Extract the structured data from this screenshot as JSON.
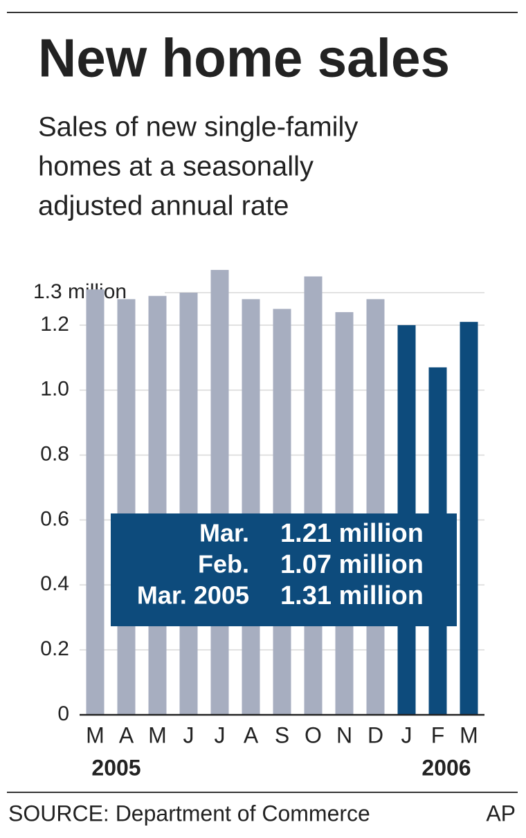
{
  "chart_data": {
    "type": "bar",
    "title": "New home sales",
    "subtitle": [
      "Sales of new single-family",
      "homes at a seasonally",
      "adjusted annual rate"
    ],
    "categories": [
      "M",
      "A",
      "M",
      "J",
      "J",
      "A",
      "S",
      "O",
      "N",
      "D",
      "J",
      "F",
      "M"
    ],
    "x_groups": [
      "2005",
      "2006"
    ],
    "values": [
      1.31,
      1.28,
      1.29,
      1.3,
      1.37,
      1.28,
      1.25,
      1.35,
      1.24,
      1.28,
      1.2,
      1.07,
      1.21
    ],
    "colors": [
      "#a7aec0",
      "#a7aec0",
      "#a7aec0",
      "#a7aec0",
      "#a7aec0",
      "#a7aec0",
      "#a7aec0",
      "#a7aec0",
      "#a7aec0",
      "#a7aec0",
      "#0d4b7c",
      "#0d4b7c",
      "#0d4b7c"
    ],
    "ylim": [
      0,
      1.4
    ],
    "yticks": [
      0,
      {
        "value": 0.2,
        "label": "0.2"
      },
      {
        "value": 0.4,
        "label": "0.4"
      },
      {
        "value": 0.6,
        "label": "0.6"
      },
      {
        "value": 0.8,
        "label": "0.8"
      },
      {
        "value": 1.0,
        "label": "1.0"
      },
      {
        "value": 1.2,
        "label": "1.2"
      },
      {
        "value": 1.3,
        "label": "1.3 million"
      }
    ],
    "grid": true,
    "annotation": [
      [
        "Mar.",
        "1.21 million"
      ],
      [
        "Feb.",
        "1.07 million"
      ],
      [
        "Mar. 2005",
        "1.31 million"
      ]
    ],
    "source": "SOURCE: Department of Commerce",
    "credit": "AP"
  }
}
